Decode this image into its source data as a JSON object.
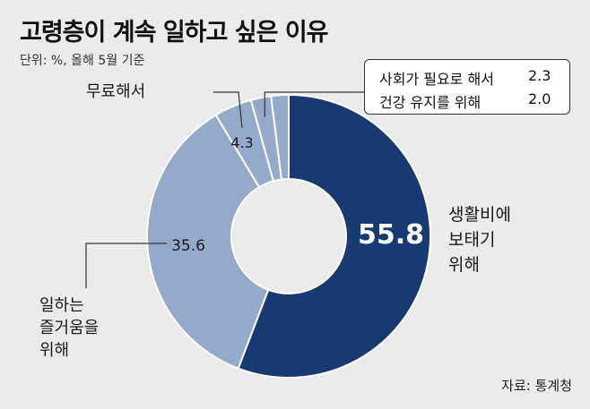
{
  "title": "고령층이 계속 일하고 싶은 이유",
  "subtitle": "단위: %, 올해 5월 기준",
  "source": "자료: 통계청",
  "callout": {
    "rows": [
      {
        "label": "사회가 필요로 해서",
        "value": "2.3"
      },
      {
        "label": "건강 유지를 위해",
        "value": "2.0"
      }
    ]
  },
  "colors": {
    "main": "#173a72",
    "light": "#94aacb",
    "background": "#ebebeb"
  },
  "chart_data": {
    "type": "pie",
    "style": "donut",
    "title": "고령층이 계속 일하고 싶은 이유",
    "unit": "%",
    "series": [
      {
        "label": "생활비에 보태기 위해",
        "label_lines": [
          "생활비에",
          "보태기",
          "위해"
        ],
        "value": 55.8,
        "value_label": "55.8",
        "color": "#173a72"
      },
      {
        "label": "일하는 즐거움을 위해",
        "label_lines": [
          "일하는",
          "즐거움을",
          "위해"
        ],
        "value": 35.6,
        "value_label": "35.6",
        "color": "#94aacb"
      },
      {
        "label": "무료해서",
        "label_lines": [
          "무료해서"
        ],
        "value": 4.3,
        "value_label": "4.3",
        "color": "#94aacb"
      },
      {
        "label": "사회가 필요로 해서",
        "value": 2.3,
        "color": "#94aacb"
      },
      {
        "label": "건강 유지를 위해",
        "value": 2.0,
        "color": "#94aacb"
      }
    ]
  }
}
